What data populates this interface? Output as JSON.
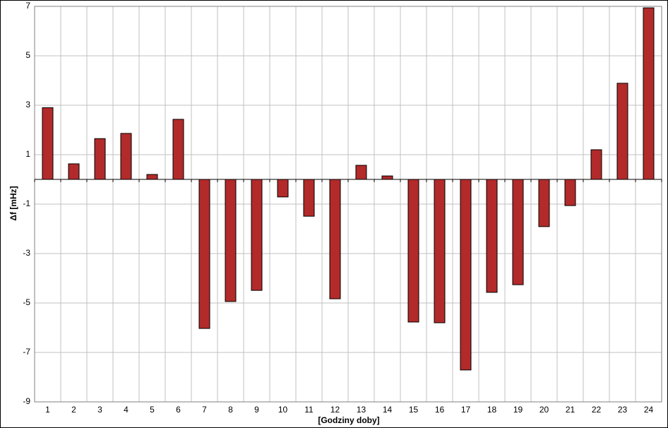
{
  "chart_data": {
    "type": "bar",
    "x_label": "[Godziny doby]",
    "y_label": "Δf [mHz]",
    "categories": [
      "1",
      "2",
      "3",
      "4",
      "5",
      "6",
      "7",
      "8",
      "9",
      "10",
      "11",
      "12",
      "13",
      "14",
      "15",
      "16",
      "17",
      "18",
      "19",
      "20",
      "21",
      "22",
      "23",
      "24"
    ],
    "values": [
      2.9,
      0.63,
      1.65,
      1.86,
      0.2,
      2.43,
      -6.03,
      -4.94,
      -4.49,
      -0.71,
      -1.49,
      -4.83,
      0.57,
      0.14,
      -5.77,
      -5.8,
      -7.71,
      -4.57,
      -4.26,
      -1.91,
      -1.06,
      1.2,
      3.89,
      6.94
    ],
    "color": "#b22a2a",
    "ylim": [
      -9,
      7
    ],
    "yticks": [
      -9,
      -7,
      -5,
      -3,
      -1,
      1,
      3,
      5,
      7
    ],
    "grid": true
  }
}
